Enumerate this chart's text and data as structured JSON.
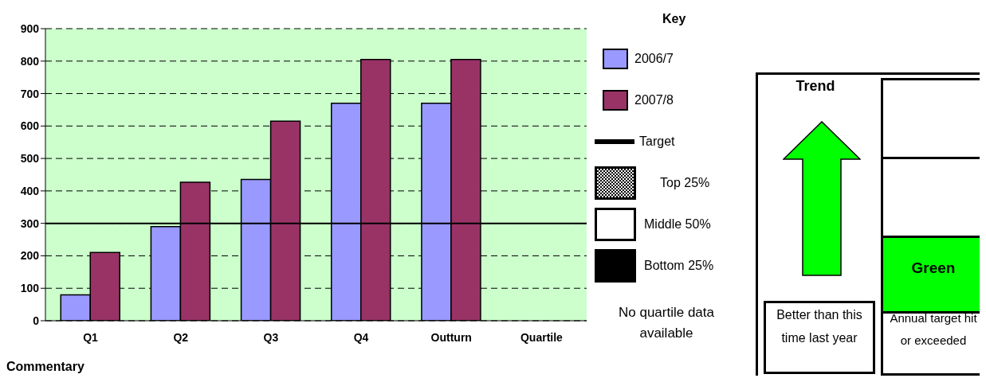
{
  "chart_data": {
    "type": "bar",
    "categories": [
      "Q1",
      "Q2",
      "Q3",
      "Q4",
      "Outturn",
      "Quartile"
    ],
    "series": [
      {
        "name": "2006/7",
        "color": "#9999ff",
        "values": [
          80,
          290,
          435,
          670,
          670,
          null
        ]
      },
      {
        "name": "2007/8",
        "color": "#993366",
        "values": [
          210,
          427,
          615,
          805,
          805,
          null
        ]
      }
    ],
    "ylim": [
      0,
      900
    ],
    "yticks": [
      0,
      100,
      200,
      300,
      400,
      500,
      600,
      700,
      800,
      900
    ],
    "grid": "y",
    "legend": "right",
    "legend_title": "Key",
    "ref_lines": [
      {
        "axis": "y",
        "value": 300,
        "label": "Target",
        "color": "#000000",
        "line_style": "solid"
      }
    ],
    "annotations": [
      "Top 25%",
      "Middle 50%",
      "Bottom 25%",
      "No quartile data available",
      "Trend",
      "Better than this time last year",
      "Green",
      "Annual target hit or exceeded",
      "Commentary"
    ]
  }
}
